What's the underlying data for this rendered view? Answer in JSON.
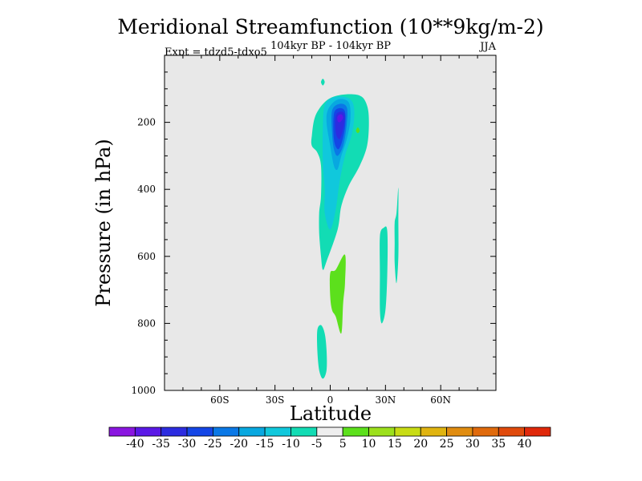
{
  "chart_data": {
    "type": "heatmap",
    "title": "Meridional Streamfunction (10**9kg/m-2)",
    "subtitle": "104kyr BP - 104kyr BP",
    "left_annotation": "Expt = tdzd5-tdxo5",
    "right_annotation": "JJA",
    "xlabel": "Latitude",
    "ylabel": "Pressure (in hPa)",
    "x_range": [
      -90,
      90
    ],
    "y_range": [
      0,
      1000
    ],
    "y_reversed": true,
    "x_ticks": [
      {
        "value": -60,
        "label": "60S"
      },
      {
        "value": -30,
        "label": "30S"
      },
      {
        "value": 0,
        "label": "0"
      },
      {
        "value": 30,
        "label": "30N"
      },
      {
        "value": 60,
        "label": "60N"
      }
    ],
    "y_ticks": [
      {
        "value": 200,
        "label": "200"
      },
      {
        "value": 400,
        "label": "400"
      },
      {
        "value": 600,
        "label": "600"
      },
      {
        "value": 800,
        "label": "800"
      },
      {
        "value": 1000,
        "label": "1000"
      }
    ],
    "background_color": "#e8e8e8",
    "colorbar": {
      "labels": [
        "-40",
        "-35",
        "-30",
        "-25",
        "-20",
        "-15",
        "-10",
        "-5",
        "5",
        "10",
        "15",
        "20",
        "25",
        "30",
        "35",
        "40"
      ],
      "colors": [
        "#8a16e0",
        "#5a18e6",
        "#2c2ce0",
        "#1446e6",
        "#0a78e6",
        "#08a8e0",
        "#10c8dc",
        "#12dcb4",
        "#eeeeee",
        "#5ce01c",
        "#9ce01c",
        "#c8dc14",
        "#e0b410",
        "#e08c10",
        "#e06a0c",
        "#e04a0c",
        "#e0280a"
      ]
    },
    "contour_regions": [
      {
        "name": "main-cell-outer",
        "level": "-10 to -5",
        "color": "#12dcb4",
        "points": [
          [
            -10,
            240
          ],
          [
            -8,
            180
          ],
          [
            -2,
            135
          ],
          [
            6,
            118
          ],
          [
            16,
            120
          ],
          [
            20,
            150
          ],
          [
            21,
            200
          ],
          [
            20,
            270
          ],
          [
            16,
            330
          ],
          [
            10,
            390
          ],
          [
            6,
            450
          ],
          [
            4,
            520
          ],
          [
            -2,
            615
          ],
          [
            -4,
            640
          ],
          [
            -5,
            600
          ],
          [
            -6,
            530
          ],
          [
            -6,
            470
          ],
          [
            -5,
            420
          ],
          [
            -5,
            330
          ],
          [
            -7,
            290
          ],
          [
            -10,
            270
          ]
        ]
      },
      {
        "name": "main-cell-15",
        "level": "-15 to -10",
        "color": "#10c8dc",
        "points": [
          [
            -3,
            150
          ],
          [
            2,
            125
          ],
          [
            10,
            128
          ],
          [
            13,
            160
          ],
          [
            12,
            230
          ],
          [
            8,
            300
          ],
          [
            5,
            380
          ],
          [
            3,
            460
          ],
          [
            0,
            520
          ],
          [
            -3,
            470
          ],
          [
            -3,
            400
          ],
          [
            -4,
            320
          ],
          [
            -4,
            220
          ]
        ]
      },
      {
        "name": "main-cell-20",
        "level": "-20 to -15",
        "color": "#08a8e0",
        "points": [
          [
            -1,
            160
          ],
          [
            4,
            132
          ],
          [
            10,
            140
          ],
          [
            11,
            190
          ],
          [
            9,
            250
          ],
          [
            6,
            300
          ],
          [
            4,
            340
          ],
          [
            2,
            330
          ],
          [
            0,
            270
          ],
          [
            -2,
            200
          ]
        ]
      },
      {
        "name": "main-cell-25",
        "level": "-25 to -20",
        "color": "#0a78e6",
        "points": [
          [
            1,
            165
          ],
          [
            5,
            145
          ],
          [
            9,
            155
          ],
          [
            9,
            205
          ],
          [
            7,
            270
          ],
          [
            4,
            300
          ],
          [
            2,
            280
          ],
          [
            1,
            230
          ]
        ]
      },
      {
        "name": "main-cell-30",
        "level": "-30 to -25",
        "color": "#1446e6",
        "points": [
          [
            2,
            175
          ],
          [
            5,
            158
          ],
          [
            8,
            168
          ],
          [
            8,
            215
          ],
          [
            6,
            265
          ],
          [
            4,
            280
          ],
          [
            2,
            250
          ]
        ]
      },
      {
        "name": "main-cell-35",
        "level": "-35 to -30",
        "color": "#2c2ce0",
        "points": [
          [
            3,
            180
          ],
          [
            6,
            168
          ],
          [
            8,
            180
          ],
          [
            7,
            220
          ],
          [
            5,
            250
          ],
          [
            3,
            230
          ]
        ]
      },
      {
        "name": "main-cell-40",
        "level": "-40 to -35",
        "color": "#5a18e6",
        "points": [
          [
            4,
            182
          ],
          [
            6,
            176
          ],
          [
            7,
            186
          ],
          [
            6,
            196
          ],
          [
            5,
            200
          ],
          [
            4,
            196
          ]
        ]
      },
      {
        "name": "top-spot",
        "level": "-10 to -5",
        "color": "#12dcb4",
        "points": [
          [
            -5,
            80
          ],
          [
            -4,
            70
          ],
          [
            -3,
            80
          ],
          [
            -4,
            90
          ]
        ]
      },
      {
        "name": "small-positive-spot",
        "level": "5 to 10",
        "color": "#5ce01c",
        "points": [
          [
            14,
            225
          ],
          [
            15,
            215
          ],
          [
            16,
            225
          ],
          [
            15,
            232
          ]
        ]
      },
      {
        "name": "lower-positive-cell",
        "level": "5 to 10",
        "color": "#5ce01c",
        "points": [
          [
            0,
            650
          ],
          [
            3,
            640
          ],
          [
            8,
            595
          ],
          [
            8,
            680
          ],
          [
            7,
            740
          ],
          [
            6,
            830
          ],
          [
            3,
            780
          ],
          [
            1,
            760
          ],
          [
            0,
            720
          ]
        ]
      },
      {
        "name": "deep-negative-cell",
        "level": "-10 to -5",
        "color": "#12dcb4",
        "points": [
          [
            -7,
            820
          ],
          [
            -5,
            805
          ],
          [
            -3,
            830
          ],
          [
            -2,
            880
          ],
          [
            -2,
            940
          ],
          [
            -4,
            965
          ],
          [
            -6,
            940
          ],
          [
            -7,
            880
          ]
        ]
      },
      {
        "name": "cell-30n",
        "level": "-10 to -5",
        "color": "#12dcb4",
        "points": [
          [
            27,
            540
          ],
          [
            29,
            515
          ],
          [
            31,
            525
          ],
          [
            31,
            650
          ],
          [
            30,
            760
          ],
          [
            28,
            800
          ],
          [
            27,
            760
          ],
          [
            27,
            650
          ]
        ]
      },
      {
        "name": "cell-36n",
        "level": "-10 to -5",
        "color": "#12dcb4",
        "points": [
          [
            35,
            500
          ],
          [
            36,
            470
          ],
          [
            37,
            395
          ],
          [
            37,
            480
          ],
          [
            37,
            600
          ],
          [
            36,
            680
          ],
          [
            35,
            620
          ],
          [
            35,
            560
          ]
        ]
      }
    ]
  }
}
